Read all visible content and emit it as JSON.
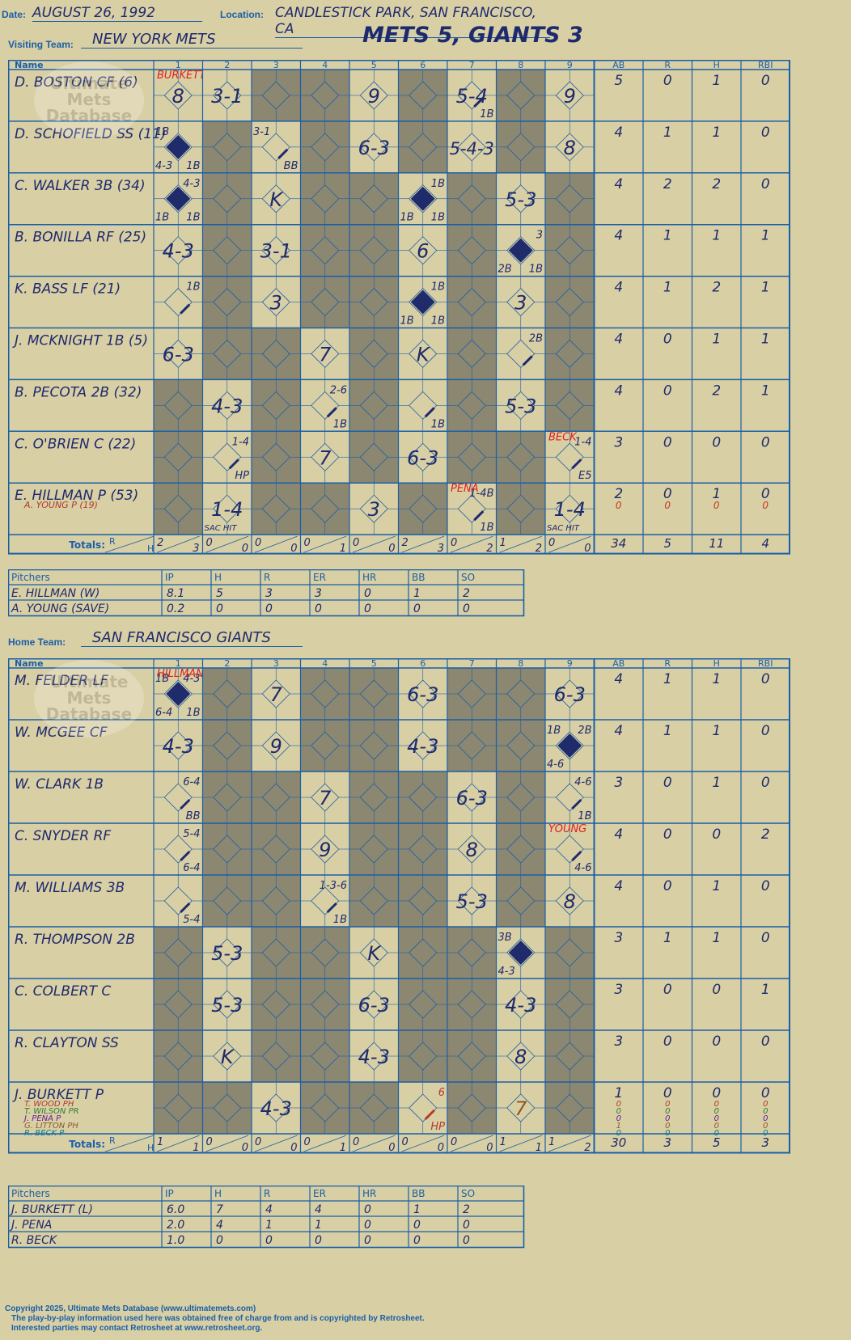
{
  "header": {
    "date_label": "Date:",
    "date": "AUGUST 26, 1992",
    "location_label": "Location:",
    "location": "CANDLESTICK PARK, SAN FRANCISCO, CA",
    "headline": "METS 5, GIANTS 3"
  },
  "innings": [
    "1",
    "2",
    "3",
    "4",
    "5",
    "6",
    "7",
    "8",
    "9"
  ],
  "stat_headers": [
    "AB",
    "R",
    "H",
    "RBI"
  ],
  "name_header": "Name",
  "totals_label": "Totals:",
  "pitch_headers": [
    "Pitchers",
    "IP",
    "H",
    "R",
    "ER",
    "HR",
    "BB",
    "SO"
  ],
  "watermark": "Ultimate Mets Database",
  "visitors": {
    "team_label": "Visiting Team:",
    "team": "NEW YORK METS",
    "players": [
      {
        "name": "D. BOSTON CF (6)",
        "stats": [
          "5",
          "0",
          "1",
          "0"
        ],
        "cells": {
          "1": {
            "t": "8",
            "s": "BURKETT"
          },
          "2": {
            "t": "3-1"
          },
          "5": {
            "t": "9"
          },
          "7": {
            "t": "5-4",
            "b": "1B",
            "line": true
          },
          "9": {
            "t": "9"
          }
        },
        "shade": [
          3,
          4,
          6,
          8
        ]
      },
      {
        "name": "D. SCHOFIELD SS (11)",
        "stats": [
          "4",
          "1",
          "1",
          "0"
        ],
        "cells": {
          "1": {
            "tl": "1B",
            "bl": "4-3",
            "b": "1B",
            "run": true
          },
          "3": {
            "tl": "3-1",
            "b": "BB",
            "line": true
          },
          "5": {
            "t": "6-3"
          },
          "7": {
            "t": "5-4-3"
          },
          "9": {
            "t": "8"
          }
        },
        "shade": [
          2,
          4,
          6,
          8
        ]
      },
      {
        "name": "C. WALKER 3B (34)",
        "stats": [
          "4",
          "2",
          "2",
          "0"
        ],
        "cells": {
          "1": {
            "tr": "4-3",
            "bl": "1B",
            "b": "1B",
            "run": true
          },
          "3": {
            "t": "K"
          },
          "6": {
            "tr": "1B",
            "bl": "1B",
            "b": "1B",
            "run": true
          },
          "8": {
            "t": "5-3"
          }
        },
        "shade": [
          2,
          4,
          5,
          7,
          9
        ]
      },
      {
        "name": "B. BONILLA RF (25)",
        "stats": [
          "4",
          "1",
          "1",
          "1"
        ],
        "cells": {
          "1": {
            "t": "4-3"
          },
          "3": {
            "t": "3-1"
          },
          "6": {
            "t": "6"
          },
          "8": {
            "tr": "3",
            "bl": "2B",
            "b": "1B",
            "run": true
          }
        },
        "shade": [
          2,
          4,
          5,
          7,
          9
        ]
      },
      {
        "name": "K. BASS LF (21)",
        "stats": [
          "4",
          "1",
          "2",
          "1"
        ],
        "cells": {
          "1": {
            "tr": "1B",
            "line": true
          },
          "3": {
            "t": "3"
          },
          "6": {
            "tr": "1B",
            "bl": "1B",
            "b": "1B",
            "run": true
          },
          "8": {
            "t": "3"
          }
        },
        "shade": [
          2,
          4,
          5,
          7,
          9
        ]
      },
      {
        "name": "J. MCKNIGHT 1B (5)",
        "stats": [
          "4",
          "0",
          "1",
          "1"
        ],
        "cells": {
          "1": {
            "t": "6-3"
          },
          "4": {
            "t": "7"
          },
          "6": {
            "t": "K"
          },
          "8": {
            "tr": "2B",
            "line": true
          }
        },
        "shade": [
          2,
          3,
          5,
          7,
          9
        ]
      },
      {
        "name": "B. PECOTA 2B (32)",
        "stats": [
          "4",
          "0",
          "2",
          "1"
        ],
        "cells": {
          "2": {
            "t": "4-3"
          },
          "4": {
            "tr": "2-6",
            "b": "1B",
            "line": true
          },
          "6": {
            "b": "1B",
            "line": true
          },
          "8": {
            "t": "5-3"
          }
        },
        "shade": [
          1,
          3,
          5,
          7,
          9
        ]
      },
      {
        "name": "C. O'BRIEN C (22)",
        "stats": [
          "3",
          "0",
          "0",
          "0"
        ],
        "cells": {
          "2": {
            "tr": "1-4",
            "b": "HP",
            "line": true
          },
          "4": {
            "t": "7"
          },
          "6": {
            "t": "6-3"
          },
          "9": {
            "tr": "1-4",
            "b": "E5",
            "line": true,
            "s": "BECK"
          }
        },
        "shade": [
          1,
          3,
          5,
          7,
          8
        ]
      },
      {
        "name": "E. HILLMAN P (53)",
        "stats": [
          "2",
          "0",
          "1",
          "0"
        ],
        "sub": {
          "name": "A. YOUNG P (19)",
          "stats": [
            "0",
            "0",
            "0",
            "0"
          ]
        },
        "cells": {
          "2": {
            "t": "1-4",
            "bl": "SAC HIT"
          },
          "5": {
            "t": "3"
          },
          "7": {
            "tr": "1-4B",
            "b": "1B",
            "line": true,
            "s": "PENA"
          },
          "9": {
            "t": "1-4",
            "bl": "SAC HIT"
          }
        },
        "shade": [
          1,
          3,
          4,
          6,
          8
        ]
      }
    ],
    "totals": {
      "rh": [
        [
          "2",
          "3"
        ],
        [
          "0",
          "0"
        ],
        [
          "0",
          "0"
        ],
        [
          "0",
          "1"
        ],
        [
          "0",
          "0"
        ],
        [
          "2",
          "3"
        ],
        [
          "0",
          "2"
        ],
        [
          "1",
          "2"
        ],
        [
          "0",
          "0"
        ]
      ],
      "stats": [
        "34",
        "5",
        "11",
        "4"
      ]
    },
    "pitchers": [
      {
        "name": "E. HILLMAN (W)",
        "vals": [
          "8.1",
          "5",
          "3",
          "3",
          "0",
          "1",
          "2"
        ]
      },
      {
        "name": "A. YOUNG (SAVE)",
        "vals": [
          "0.2",
          "0",
          "0",
          "0",
          "0",
          "0",
          "0"
        ]
      }
    ]
  },
  "home": {
    "team_label": "Home Team:",
    "team": "SAN FRANCISCO GIANTS",
    "players": [
      {
        "name": "M. FELDER LF",
        "stats": [
          "4",
          "1",
          "1",
          "0"
        ],
        "cells": {
          "1": {
            "tl": "1B",
            "tr": "4-3",
            "bl": "6-4",
            "b": "1B",
            "run": true,
            "s": "HILLMAN"
          },
          "3": {
            "t": "7"
          },
          "6": {
            "t": "6-3"
          },
          "9": {
            "t": "6-3"
          }
        },
        "shade": [
          2,
          4,
          5,
          7,
          8
        ]
      },
      {
        "name": "W. MCGEE CF",
        "stats": [
          "4",
          "1",
          "1",
          "0"
        ],
        "cells": {
          "1": {
            "t": "4-3"
          },
          "3": {
            "t": "9"
          },
          "6": {
            "t": "4-3"
          },
          "9": {
            "tl": "1B",
            "tr": "2B",
            "bl": "4-6",
            "run": true
          }
        },
        "shade": [
          2,
          4,
          5,
          7,
          8
        ]
      },
      {
        "name": "W. CLARK 1B",
        "stats": [
          "3",
          "0",
          "1",
          "0"
        ],
        "cells": {
          "1": {
            "tr": "6-4",
            "b": "BB",
            "line": true
          },
          "4": {
            "t": "7"
          },
          "7": {
            "t": "6-3"
          },
          "9": {
            "tr": "4-6",
            "b": "1B",
            "line": true
          }
        },
        "shade": [
          2,
          3,
          5,
          6,
          8
        ]
      },
      {
        "name": "C. SNYDER RF",
        "stats": [
          "4",
          "0",
          "0",
          "2"
        ],
        "cells": {
          "1": {
            "tr": "5-4",
            "b": "6-4",
            "line": true
          },
          "4": {
            "t": "9"
          },
          "7": {
            "t": "8"
          },
          "9": {
            "b": "4-6",
            "line": true,
            "s": "YOUNG"
          }
        },
        "shade": [
          2,
          3,
          5,
          6,
          8
        ]
      },
      {
        "name": "M. WILLIAMS 3B",
        "stats": [
          "4",
          "0",
          "1",
          "0"
        ],
        "cells": {
          "1": {
            "b": "5-4",
            "line": true
          },
          "4": {
            "tr": "1-3-6",
            "b": "1B",
            "line": true
          },
          "7": {
            "t": "5-3"
          },
          "9": {
            "t": "8"
          }
        },
        "shade": [
          2,
          3,
          5,
          6,
          8
        ]
      },
      {
        "name": "R. THOMPSON 2B",
        "stats": [
          "3",
          "1",
          "1",
          "0"
        ],
        "cells": {
          "2": {
            "t": "5-3"
          },
          "5": {
            "t": "K"
          },
          "8": {
            "tl": "3B",
            "bl": "4-3",
            "run": true
          }
        },
        "shade": [
          1,
          3,
          4,
          6,
          7,
          9
        ]
      },
      {
        "name": "C. COLBERT C",
        "stats": [
          "3",
          "0",
          "0",
          "1"
        ],
        "cells": {
          "2": {
            "t": "5-3"
          },
          "5": {
            "t": "6-3"
          },
          "8": {
            "t": "4-3"
          }
        },
        "shade": [
          1,
          3,
          4,
          6,
          7,
          9
        ]
      },
      {
        "name": "R. CLAYTON SS",
        "stats": [
          "3",
          "0",
          "0",
          "0"
        ],
        "cells": {
          "2": {
            "t": "K"
          },
          "5": {
            "t": "4-3"
          },
          "8": {
            "t": "8"
          }
        },
        "shade": [
          1,
          3,
          4,
          6,
          7,
          9
        ]
      },
      {
        "name": "J. BURKETT P",
        "stats": [
          "1",
          "0",
          "0",
          "0"
        ],
        "subs": [
          {
            "name": "T. WOOD PH",
            "stats": [
              "0",
              "0",
              "0",
              "0"
            ],
            "color": "#b03a2e"
          },
          {
            "name": "T. WILSON PR",
            "stats": [
              "0",
              "0",
              "0",
              "0"
            ],
            "color": "#2e7d32"
          },
          {
            "name": "J. PENA P",
            "stats": [
              "0",
              "0",
              "0",
              "0"
            ],
            "color": "#6a1b9a"
          },
          {
            "name": "G. LITTON PH",
            "stats": [
              "1",
              "0",
              "0",
              "0"
            ],
            "color": "#8d5a2b"
          },
          {
            "name": "R. BECK P",
            "stats": [
              "0",
              "0",
              "0",
              "0"
            ],
            "color": "#00838f"
          }
        ],
        "cells": {
          "3": {
            "t": "4-3"
          },
          "6": {
            "tr": "6",
            "b": "HP",
            "line": true,
            "c": "#b03a2e"
          },
          "8": {
            "t": "7",
            "c": "#8d5a2b"
          }
        },
        "shade": [
          1,
          2,
          4,
          5,
          7,
          9
        ]
      }
    ],
    "totals": {
      "rh": [
        [
          "1",
          "1"
        ],
        [
          "0",
          "0"
        ],
        [
          "0",
          "0"
        ],
        [
          "0",
          "1"
        ],
        [
          "0",
          "0"
        ],
        [
          "0",
          "0"
        ],
        [
          "0",
          "0"
        ],
        [
          "1",
          "1"
        ],
        [
          "1",
          "2"
        ]
      ],
      "stats": [
        "30",
        "3",
        "5",
        "3"
      ]
    },
    "pitchers": [
      {
        "name": "J. BURKETT (L)",
        "vals": [
          "6.0",
          "7",
          "4",
          "4",
          "0",
          "1",
          "2"
        ]
      },
      {
        "name": "J. PENA",
        "vals": [
          "2.0",
          "4",
          "1",
          "1",
          "0",
          "0",
          "0"
        ]
      },
      {
        "name": "R. BECK",
        "vals": [
          "1.0",
          "0",
          "0",
          "0",
          "0",
          "0",
          "0"
        ]
      }
    ]
  },
  "footer": {
    "line1": "Copyright 2025, Ultimate Mets Database (www.ultimatemets.com)",
    "line2": "The play-by-play information used here was obtained free of charge from and is copyrighted by Retrosheet.",
    "line3": "Interested parties may contact Retrosheet at www.retrosheet.org."
  }
}
